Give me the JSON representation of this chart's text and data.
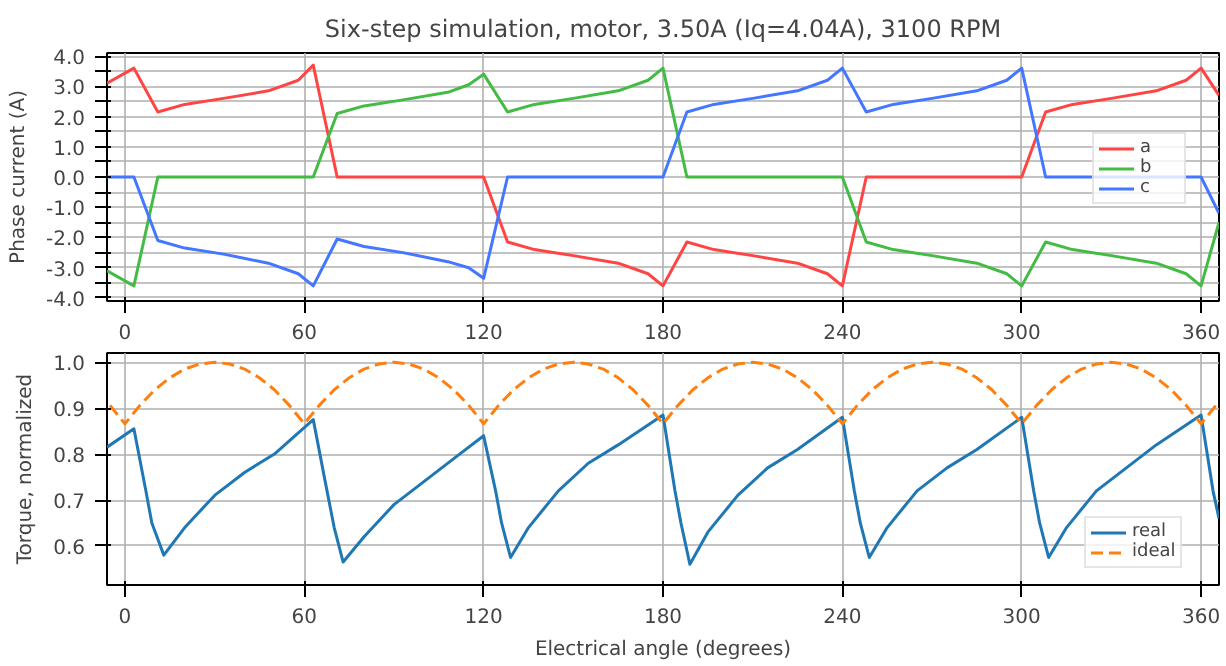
{
  "chart_data": [
    {
      "type": "line",
      "title": "Six-step simulation, motor, 3.50A (Iq=4.04A), 3100 RPM",
      "ylabel": "Phase current (A)",
      "xlim": [
        -6,
        366
      ],
      "xticks": [
        0,
        60,
        120,
        180,
        240,
        300,
        360
      ],
      "ylim": [
        -4.1,
        4.1
      ],
      "yticks": [
        {
          "value": -4,
          "label": "-4.0"
        },
        {
          "value": -3.5,
          "label": null
        },
        {
          "value": -3,
          "label": "-3.0"
        },
        {
          "value": -2.5,
          "label": null
        },
        {
          "value": -2,
          "label": "-2.0"
        },
        {
          "value": -1.5,
          "label": null
        },
        {
          "value": -1,
          "label": "-1.0"
        },
        {
          "value": -0.5,
          "label": null
        },
        {
          "value": 0,
          "label": "0.0"
        },
        {
          "value": 0.5,
          "label": null
        },
        {
          "value": 1,
          "label": "1.0"
        },
        {
          "value": 1.5,
          "label": null
        },
        {
          "value": 2,
          "label": "2.0"
        },
        {
          "value": 2.5,
          "label": null
        },
        {
          "value": 3,
          "label": "3.0"
        },
        {
          "value": 3.5,
          "label": null
        },
        {
          "value": 4,
          "label": "4.0"
        }
      ],
      "grid": true,
      "legend": "top right",
      "line_style": "solid",
      "series": [
        {
          "name": "a",
          "color": "#ff4444",
          "x": [
            -6,
            3,
            11,
            20,
            33,
            48,
            58,
            63,
            71,
            120,
            128,
            137,
            150,
            165,
            175,
            180,
            188,
            197,
            210,
            225,
            235,
            240,
            248,
            300,
            308,
            317,
            330,
            345,
            355,
            360,
            366
          ],
          "values": [
            3.1,
            3.6,
            2.15,
            2.4,
            2.6,
            2.85,
            3.2,
            3.7,
            0,
            0,
            -2.15,
            -2.4,
            -2.6,
            -2.85,
            -3.2,
            -3.6,
            -2.15,
            -2.4,
            -2.6,
            -2.85,
            -3.2,
            -3.6,
            0,
            0,
            2.15,
            2.4,
            2.6,
            2.85,
            3.2,
            3.6,
            2.7
          ]
        },
        {
          "name": "b",
          "color": "#44bb44",
          "x": [
            -6,
            3,
            11,
            63,
            71,
            80,
            93,
            108,
            115,
            120,
            128,
            137,
            150,
            165,
            175,
            180,
            188,
            240,
            248,
            257,
            270,
            285,
            295,
            300,
            308,
            317,
            330,
            345,
            355,
            360,
            366
          ],
          "values": [
            -3.1,
            -3.6,
            0,
            0,
            2.1,
            2.35,
            2.55,
            2.8,
            3.05,
            3.4,
            2.15,
            2.4,
            2.6,
            2.85,
            3.2,
            3.6,
            0,
            0,
            -2.15,
            -2.4,
            -2.6,
            -2.85,
            -3.2,
            -3.6,
            -2.15,
            -2.4,
            -2.6,
            -2.85,
            -3.2,
            -3.6,
            -1.5
          ]
        },
        {
          "name": "c",
          "color": "#4477ff",
          "x": [
            -6,
            3,
            11,
            20,
            33,
            48,
            58,
            63,
            71,
            80,
            93,
            108,
            115,
            120,
            128,
            180,
            188,
            197,
            210,
            225,
            235,
            240,
            248,
            257,
            270,
            285,
            295,
            300,
            308,
            360,
            366
          ],
          "values": [
            0,
            0,
            -2.1,
            -2.35,
            -2.55,
            -2.85,
            -3.2,
            -3.6,
            -2.05,
            -2.3,
            -2.5,
            -2.8,
            -3.0,
            -3.35,
            0,
            0,
            2.15,
            2.4,
            2.6,
            2.85,
            3.2,
            3.6,
            2.15,
            2.4,
            2.6,
            2.85,
            3.2,
            3.6,
            0,
            0,
            -1.2
          ]
        }
      ]
    },
    {
      "type": "line",
      "xlabel": "Electrical angle (degrees)",
      "ylabel": "Torque, normalized",
      "xlim": [
        -6,
        366
      ],
      "xticks": [
        0,
        60,
        120,
        180,
        240,
        300,
        360
      ],
      "ylim": [
        0.515,
        1.02
      ],
      "yticks": [
        {
          "value": 0.6,
          "label": "0.6"
        },
        {
          "value": 0.7,
          "label": "0.7"
        },
        {
          "value": 0.8,
          "label": "0.8"
        },
        {
          "value": 0.9,
          "label": "0.9"
        },
        {
          "value": 1,
          "label": "1.0"
        }
      ],
      "grid": true,
      "legend": "bottom right",
      "series": [
        {
          "name": "real",
          "color": "#1f77b4",
          "line_style": "solid",
          "x": [
            -6,
            3,
            7,
            9,
            13,
            20,
            30,
            40,
            50,
            63,
            67,
            70,
            73,
            80,
            90,
            100,
            110,
            120,
            124,
            126,
            129,
            135,
            145,
            155,
            165,
            180,
            184,
            186,
            189,
            195,
            205,
            215,
            225,
            240,
            244,
            246,
            249,
            255,
            265,
            275,
            285,
            300,
            304,
            306,
            309,
            315,
            325,
            335,
            345,
            360,
            364,
            366
          ],
          "values": [
            0.815,
            0.855,
            0.72,
            0.65,
            0.58,
            0.64,
            0.71,
            0.76,
            0.8,
            0.875,
            0.74,
            0.64,
            0.565,
            0.62,
            0.69,
            0.74,
            0.79,
            0.84,
            0.72,
            0.65,
            0.575,
            0.64,
            0.72,
            0.78,
            0.82,
            0.885,
            0.72,
            0.65,
            0.56,
            0.63,
            0.71,
            0.77,
            0.81,
            0.88,
            0.72,
            0.65,
            0.575,
            0.64,
            0.72,
            0.77,
            0.81,
            0.88,
            0.72,
            0.65,
            0.575,
            0.64,
            0.72,
            0.77,
            0.82,
            0.885,
            0.72,
            0.66
          ]
        },
        {
          "name": "ideal",
          "color": "#ff7f0e",
          "line_style": "dashed",
          "x": [
            -5,
            0,
            5,
            10,
            15,
            20,
            25,
            30,
            35,
            40,
            45,
            50,
            55,
            60,
            65,
            70,
            75,
            80,
            85,
            90,
            95,
            100,
            105,
            110,
            115,
            120,
            125,
            130,
            135,
            140,
            145,
            150,
            155,
            160,
            165,
            170,
            175,
            180,
            185,
            190,
            195,
            200,
            205,
            210,
            215,
            220,
            225,
            230,
            235,
            240,
            245,
            250,
            255,
            260,
            265,
            270,
            275,
            280,
            285,
            290,
            295,
            300,
            305,
            310,
            315,
            320,
            325,
            330,
            335,
            340,
            345,
            350,
            355,
            360,
            365
          ],
          "values": [
            0.906,
            0.866,
            0.906,
            0.94,
            0.966,
            0.985,
            0.996,
            1.0,
            0.996,
            0.985,
            0.966,
            0.94,
            0.906,
            0.866,
            0.906,
            0.94,
            0.966,
            0.985,
            0.996,
            1.0,
            0.996,
            0.985,
            0.966,
            0.94,
            0.906,
            0.866,
            0.906,
            0.94,
            0.966,
            0.985,
            0.996,
            1.0,
            0.996,
            0.985,
            0.966,
            0.94,
            0.906,
            0.866,
            0.906,
            0.94,
            0.966,
            0.985,
            0.996,
            1.0,
            0.996,
            0.985,
            0.966,
            0.94,
            0.906,
            0.866,
            0.906,
            0.94,
            0.966,
            0.985,
            0.996,
            1.0,
            0.996,
            0.985,
            0.966,
            0.94,
            0.906,
            0.866,
            0.906,
            0.94,
            0.966,
            0.985,
            0.996,
            1.0,
            0.996,
            0.985,
            0.966,
            0.94,
            0.906,
            0.866,
            0.906
          ]
        }
      ]
    }
  ]
}
